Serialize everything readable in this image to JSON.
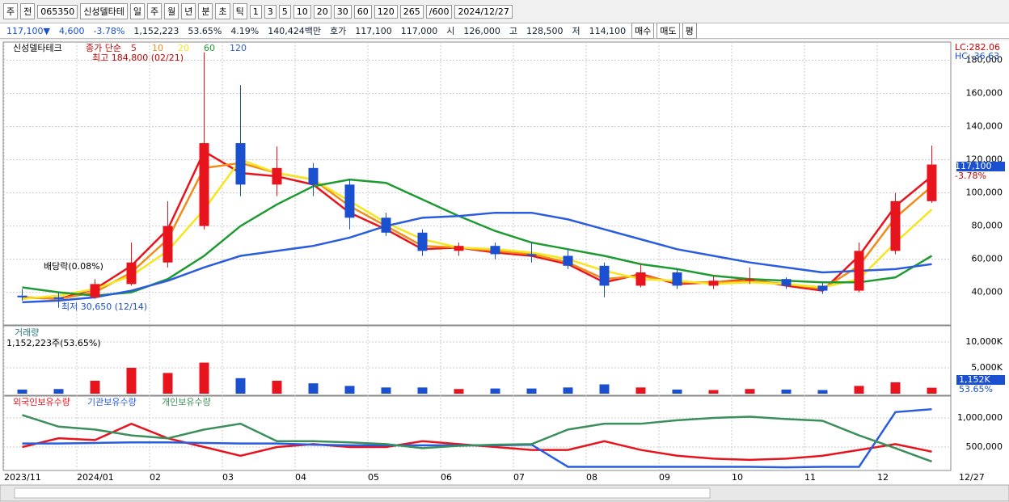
{
  "toolbar": {
    "items": [
      "주",
      "전",
      "065350",
      "신성델타테",
      "일",
      "주",
      "월",
      "년",
      "분",
      "초",
      "틱",
      "1",
      "3",
      "5",
      "10",
      "20",
      "30",
      "60",
      "120",
      "265",
      "/600",
      "2024/12/27"
    ]
  },
  "info_bar": {
    "items": [
      "117,100▼",
      "4,600",
      "-3.78%",
      "1,152,223",
      "53.65%",
      "4.19%",
      "140,424백만",
      "호가",
      "117,100",
      "117,000",
      "시",
      "126,000",
      "고",
      "128,500",
      "저",
      "114,100"
    ],
    "buttons": [
      "매수",
      "매도",
      "평"
    ]
  },
  "chart_data": [
    {
      "type": "candlestick",
      "title": "신성델타테크",
      "legend_title": "종가 단순",
      "categories": [
        "2023/11",
        null,
        "2024/01",
        null,
        "02",
        null,
        "03",
        null,
        "04",
        null,
        "05",
        null,
        "06",
        null,
        "07",
        null,
        "08",
        null,
        "09",
        null,
        "10",
        null,
        "11",
        null,
        "12",
        null
      ],
      "end_label": "12/27",
      "open": [
        38000,
        37000,
        37000,
        45000,
        58000,
        80000,
        130000,
        105000,
        115000,
        105000,
        85000,
        76000,
        65000,
        68000,
        63000,
        62000,
        56000,
        44000,
        52000,
        44000,
        47000,
        48000,
        44000,
        41000,
        65000,
        95000
      ],
      "high": [
        42000,
        40000,
        48000,
        70000,
        95000,
        184800,
        165000,
        128000,
        118000,
        108000,
        88000,
        78000,
        70000,
        70000,
        70000,
        66000,
        58000,
        57000,
        54000,
        50000,
        55000,
        49000,
        46000,
        70000,
        100000,
        128500
      ],
      "low": [
        35000,
        30650,
        36000,
        44000,
        55000,
        78000,
        98000,
        98000,
        98000,
        78000,
        74000,
        62000,
        62000,
        60000,
        58000,
        54000,
        37000,
        43000,
        42000,
        42000,
        45000,
        42000,
        39000,
        40000,
        63000,
        94000
      ],
      "close": [
        37000,
        36000,
        45000,
        58000,
        80000,
        130000,
        105000,
        115000,
        105000,
        85000,
        76000,
        65000,
        68000,
        63000,
        62000,
        56000,
        44000,
        52000,
        44000,
        47000,
        48000,
        44000,
        41000,
        65000,
        95000,
        117100
      ],
      "up_color": "#e8141d",
      "down_color": "#1a4fd0",
      "series": [
        {
          "name": "5",
          "color": "#e8141d",
          "values": [
            37000,
            36000,
            42000,
            56000,
            78000,
            125000,
            112000,
            110000,
            105000,
            88000,
            78000,
            66000,
            67000,
            64000,
            62000,
            57000,
            46000,
            51000,
            45000,
            46000,
            48000,
            44000,
            41000,
            62000,
            92000,
            110000
          ]
        },
        {
          "name": "10",
          "color": "#f08c1a",
          "values": [
            37000,
            36000,
            40000,
            52000,
            72000,
            115000,
            118000,
            112000,
            108000,
            92000,
            80000,
            68000,
            67000,
            65000,
            63000,
            58000,
            48000,
            50000,
            46000,
            46000,
            47000,
            45000,
            42000,
            56000,
            85000,
            104000
          ]
        },
        {
          "name": "20",
          "color": "#f5e61e",
          "values": [
            36000,
            38000,
            42000,
            50000,
            65000,
            90000,
            120000,
            112000,
            108000,
            95000,
            82000,
            72000,
            67000,
            66000,
            64000,
            60000,
            53000,
            48000,
            47000,
            45000,
            46000,
            45000,
            43000,
            48000,
            70000,
            90000
          ]
        },
        {
          "name": "60",
          "color": "#1e9a32",
          "values": [
            43000,
            40000,
            38000,
            40000,
            48000,
            62000,
            80000,
            93000,
            104000,
            108000,
            106000,
            96000,
            86000,
            77000,
            70000,
            66000,
            62000,
            57000,
            54000,
            50000,
            48000,
            47000,
            46000,
            46000,
            49000,
            62000
          ]
        },
        {
          "name": "120",
          "color": "#2a5ce0",
          "values": [
            34000,
            35000,
            37000,
            41000,
            47000,
            55000,
            62000,
            65000,
            68000,
            73000,
            80000,
            85000,
            86000,
            88000,
            88000,
            84000,
            78000,
            72000,
            66000,
            62000,
            58000,
            55000,
            52000,
            53000,
            54000,
            57000
          ]
        }
      ],
      "ylim": [
        20300,
        191000
      ],
      "yticks": [
        {
          "value": 40000,
          "label": "40,000"
        },
        {
          "value": 60000,
          "label": "60,000"
        },
        {
          "value": 80000,
          "label": "80,000"
        },
        {
          "value": 100000,
          "label": "100,000"
        },
        {
          "value": 120000,
          "label": "120,000"
        },
        {
          "value": 140000,
          "label": "140,000"
        },
        {
          "value": 160000,
          "label": "160,000"
        },
        {
          "value": 180000,
          "label": "180,000"
        }
      ],
      "grid": true,
      "annotations": [
        "최고 184,800 (02/21)",
        "최저 30,650 (12/14)",
        "배당락(0.08%)"
      ],
      "right_labels": [
        "LC:282.06",
        "HC:-36.63",
        "117,100",
        "-3.78%"
      ]
    },
    {
      "type": "bar",
      "title": "거래량",
      "subtitle": "1,152,223주(53.65%)",
      "values": [
        800,
        900,
        2500,
        5000,
        4000,
        6000,
        3000,
        2500,
        2000,
        1500,
        1200,
        1200,
        900,
        1000,
        1000,
        1200,
        1800,
        1200,
        800,
        700,
        900,
        800,
        700,
        1500,
        2200,
        1152
      ],
      "ylim": [
        0,
        12500
      ],
      "yticks": [
        {
          "value": 5000,
          "label": "5,000K"
        },
        {
          "value": 10000,
          "label": "10,000K"
        }
      ],
      "right_labels": [
        "1,152K",
        "53.65%"
      ]
    },
    {
      "type": "line",
      "series": [
        {
          "name": "외국인보유수량",
          "color": "#e8141d",
          "values": [
            500000,
            650000,
            620000,
            900000,
            650000,
            500000,
            350000,
            500000,
            550000,
            500000,
            500000,
            600000,
            550000,
            500000,
            450000,
            450000,
            600000,
            450000,
            350000,
            300000,
            280000,
            300000,
            350000,
            450000,
            550000,
            420000
          ]
        },
        {
          "name": "기관보유수량",
          "color": "#2a5ce0",
          "values": [
            560000,
            560000,
            570000,
            580000,
            580000,
            570000,
            560000,
            560000,
            540000,
            530000,
            530000,
            530000,
            530000,
            530000,
            540000,
            160000,
            160000,
            160000,
            160000,
            160000,
            160000,
            150000,
            160000,
            160000,
            1100000,
            1150000
          ]
        },
        {
          "name": "개인보유수량",
          "color": "#3a8f5a",
          "values": [
            1050000,
            850000,
            800000,
            700000,
            650000,
            800000,
            900000,
            600000,
            600000,
            580000,
            550000,
            480000,
            520000,
            540000,
            550000,
            800000,
            900000,
            900000,
            960000,
            1000000,
            1020000,
            980000,
            950000,
            700000,
            480000,
            250000
          ]
        }
      ],
      "ylim": [
        97000,
        1347000
      ],
      "yticks": [
        {
          "value": 500000,
          "label": "500,000"
        },
        {
          "value": 1000000,
          "label": "1,000,000"
        }
      ]
    }
  ]
}
